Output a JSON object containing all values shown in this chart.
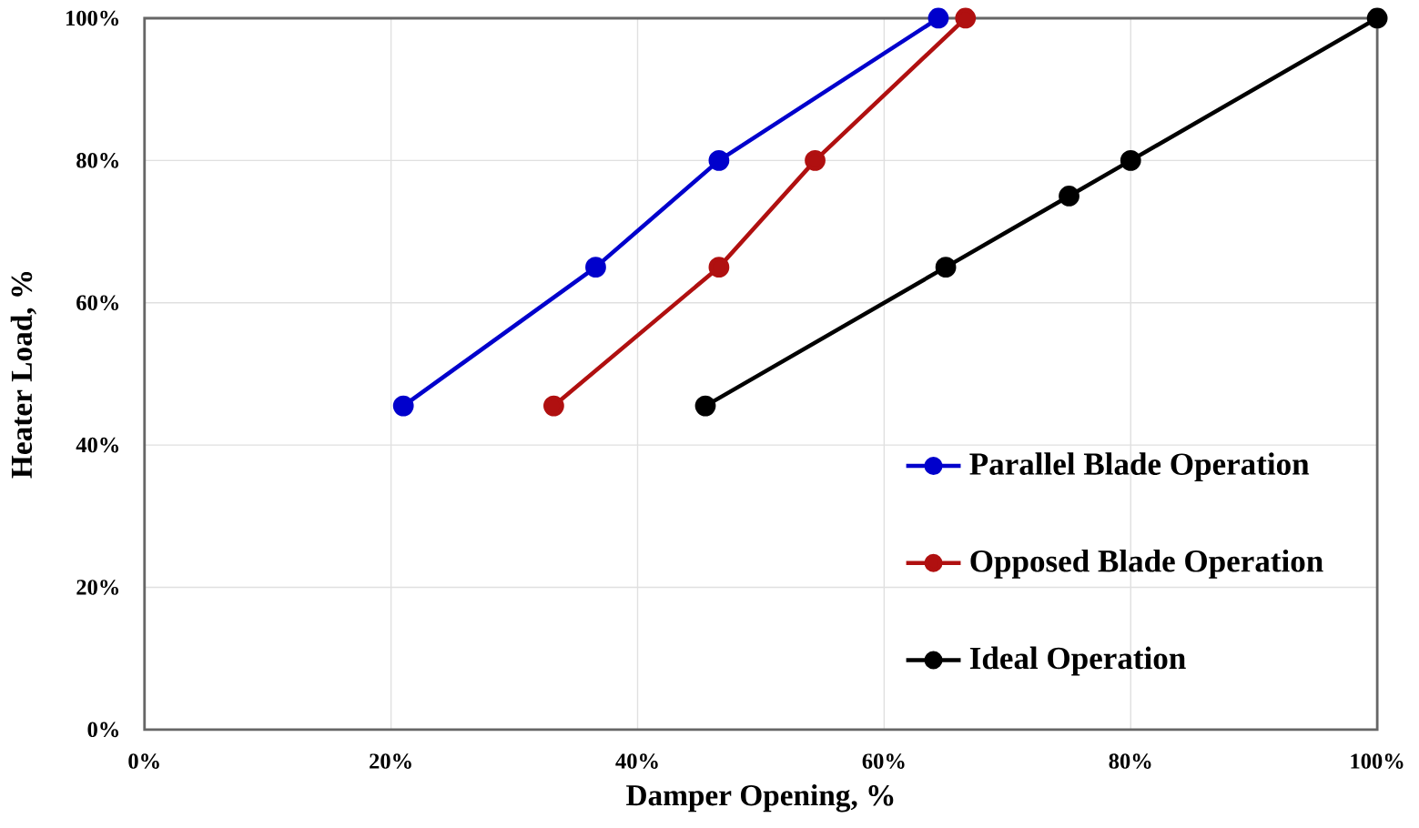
{
  "chart_data": {
    "type": "line",
    "xlabel": "Damper Opening, %",
    "ylabel": "Heater Load, %",
    "xlim": [
      0,
      100
    ],
    "ylim": [
      0,
      100
    ],
    "xticks": [
      {
        "value": 0,
        "label": "0%"
      },
      {
        "value": 20,
        "label": "20%"
      },
      {
        "value": 40,
        "label": "40%"
      },
      {
        "value": 60,
        "label": "60%"
      },
      {
        "value": 80,
        "label": "80%"
      },
      {
        "value": 100,
        "label": "100%"
      }
    ],
    "yticks": [
      {
        "value": 0,
        "label": "0%"
      },
      {
        "value": 20,
        "label": "20%"
      },
      {
        "value": 40,
        "label": "40%"
      },
      {
        "value": 60,
        "label": "60%"
      },
      {
        "value": 80,
        "label": "80%"
      },
      {
        "value": 100,
        "label": "100%"
      }
    ],
    "grid": true,
    "legend": "bottom right",
    "marker": "circle",
    "line_style": "solid",
    "series": [
      {
        "name": "Parallel Blade Operation",
        "color": "#0000cc",
        "x": [
          21,
          36.6,
          46.6,
          64.4
        ],
        "values": [
          45.5,
          65,
          80,
          100
        ]
      },
      {
        "name": "Opposed Blade Operation",
        "color": "#b01010",
        "x": [
          33.2,
          46.6,
          54.4,
          66.6
        ],
        "values": [
          45.5,
          65,
          80,
          100
        ]
      },
      {
        "name": "Ideal Operation",
        "color": "#000000",
        "x": [
          45.5,
          65,
          75,
          80,
          100
        ],
        "values": [
          45.5,
          65,
          75,
          80,
          100
        ]
      }
    ]
  }
}
